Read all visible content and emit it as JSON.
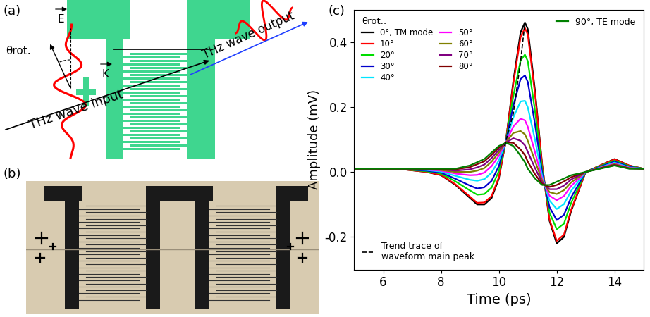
{
  "panels": [
    {
      "label": "(a)",
      "type": "diagram",
      "texts": {
        "angle": "θrot.",
        "field": "E",
        "wavevector": "K",
        "input": "THz wave input",
        "output": "THz wave output"
      }
    },
    {
      "label": "(b)",
      "type": "photo"
    }
  ],
  "chart_data": {
    "type": "line",
    "panel_label": "(c)",
    "x_label": "Time (ps)",
    "y_label": "Amplitude (mV)",
    "xlim": [
      5,
      15
    ],
    "ylim": [
      -0.3,
      0.5
    ],
    "xticks": [
      6,
      8,
      10,
      12,
      14
    ],
    "yticks": [
      -0.2,
      {
        "value": 0.0,
        "label": "0.0"
      },
      0.2,
      0.4
    ],
    "legend": "upper left",
    "legend_title": "θrot.:",
    "x": [
      5,
      5.5,
      6,
      6.5,
      7,
      7.5,
      8,
      8.5,
      9,
      9.25,
      9.5,
      9.75,
      10,
      10.25,
      10.5,
      10.75,
      10.9,
      11,
      11.25,
      11.5,
      11.75,
      12,
      12.25,
      12.5,
      13,
      13.5,
      14,
      14.5,
      15
    ],
    "series": [
      {
        "name": "0°, TM mode",
        "color": "#000000",
        "values": [
          0.01,
          0.01,
          0.01,
          0.01,
          0.005,
          0,
          -0.01,
          -0.04,
          -0.08,
          -0.1,
          -0.1,
          -0.08,
          -0.02,
          0.1,
          0.28,
          0.43,
          0.46,
          0.44,
          0.25,
          0.02,
          -0.15,
          -0.22,
          -0.2,
          -0.12,
          0,
          0.02,
          0.04,
          0.02,
          0.01
        ]
      },
      {
        "name": "10°",
        "color": "#ff0000",
        "values": [
          0.01,
          0.01,
          0.01,
          0.01,
          0.005,
          0.0,
          -0.009,
          -0.038,
          -0.076,
          -0.095,
          -0.094,
          -0.074,
          -0.016,
          0.1,
          0.272,
          0.415,
          0.443,
          0.423,
          0.239,
          0.018,
          -0.146,
          -0.212,
          -0.193,
          -0.116,
          0,
          0.02,
          0.039,
          0.02,
          0.01
        ]
      },
      {
        "name": "20°",
        "color": "#00dd00",
        "values": [
          0.01,
          0.01,
          0.01,
          0.01,
          0.006,
          0.002,
          -0.005,
          -0.029,
          -0.057,
          -0.07,
          -0.068,
          -0.048,
          0.003,
          0.098,
          0.234,
          0.343,
          0.361,
          0.341,
          0.188,
          0.006,
          -0.125,
          -0.176,
          -0.159,
          -0.095,
          0,
          0.018,
          0.035,
          0.018,
          0.01
        ]
      },
      {
        "name": "30°",
        "color": "#0000cc",
        "values": [
          0.01,
          0.01,
          0.01,
          0.01,
          0.007,
          0.004,
          -0.002,
          -0.021,
          -0.042,
          -0.051,
          -0.047,
          -0.027,
          0.018,
          0.096,
          0.204,
          0.286,
          0.297,
          0.277,
          0.147,
          -0.003,
          -0.108,
          -0.148,
          -0.132,
          -0.078,
          0,
          0.016,
          0.032,
          0.016,
          0.01
        ]
      },
      {
        "name": "40°",
        "color": "#00e5ff",
        "values": [
          0.01,
          0.01,
          0.01,
          0.01,
          0.008,
          0.006,
          0.001,
          -0.012,
          -0.024,
          -0.027,
          -0.022,
          -0.002,
          0.036,
          0.094,
          0.168,
          0.217,
          0.219,
          0.199,
          0.099,
          -0.014,
          -0.088,
          -0.114,
          -0.099,
          -0.058,
          0,
          0.014,
          0.029,
          0.014,
          0.01
        ]
      },
      {
        "name": "50°",
        "color": "#ff00ff",
        "values": [
          0.01,
          0.01,
          0.01,
          0.01,
          0.009,
          0.007,
          0.004,
          -0.005,
          -0.01,
          -0.009,
          -0.002,
          0.018,
          0.05,
          0.093,
          0.14,
          0.164,
          0.159,
          0.139,
          0.061,
          -0.022,
          -0.073,
          -0.087,
          -0.074,
          -0.043,
          0,
          0.013,
          0.026,
          0.013,
          0.01
        ]
      },
      {
        "name": "60°",
        "color": "#808000",
        "values": [
          0.01,
          0.01,
          0.01,
          0.01,
          0.009,
          0.008,
          0.006,
          0,
          0,
          0.004,
          0.012,
          0.032,
          0.06,
          0.092,
          0.12,
          0.126,
          0.116,
          0.096,
          0.034,
          -0.028,
          -0.062,
          -0.068,
          -0.056,
          -0.032,
          0,
          0.012,
          0.024,
          0.012,
          0.01
        ]
      },
      {
        "name": "70°",
        "color": "#800080",
        "values": [
          0.01,
          0.01,
          0.01,
          0.01,
          0.009,
          0.009,
          0.008,
          0.004,
          0.008,
          0.014,
          0.023,
          0.043,
          0.068,
          0.091,
          0.104,
          0.096,
          0.082,
          0.062,
          0.012,
          -0.033,
          -0.053,
          -0.053,
          -0.042,
          -0.023,
          0,
          0.011,
          0.022,
          0.011,
          0.01
        ]
      },
      {
        "name": "80°",
        "color": "#800000",
        "values": [
          0.01,
          0.01,
          0.01,
          0.01,
          0.01,
          0.01,
          0.009,
          0.008,
          0.015,
          0.024,
          0.033,
          0.053,
          0.075,
          0.091,
          0.09,
          0.069,
          0.052,
          0.032,
          -0.007,
          -0.037,
          -0.046,
          -0.04,
          -0.029,
          -0.016,
          0,
          0.011,
          0.021,
          0.011,
          0.01
        ]
      },
      {
        "name": "90°, TE mode",
        "color": "#008000",
        "values": [
          0.01,
          0.01,
          0.01,
          0.01,
          0.01,
          0.01,
          0.01,
          0.01,
          0.02,
          0.03,
          0.04,
          0.06,
          0.08,
          0.09,
          0.08,
          0.05,
          0.03,
          0.01,
          -0.02,
          -0.04,
          -0.04,
          -0.03,
          -0.02,
          -0.01,
          0.0,
          0.01,
          0.02,
          0.01,
          0.01
        ]
      },
      {
        "name": "Trend trace of\nwaveform main peak",
        "color": "#000000",
        "line_style": "dashed",
        "x": [
          10.2,
          10.5,
          10.75,
          10.9
        ],
        "values": [
          0.08,
          0.18,
          0.34,
          0.46
        ]
      }
    ]
  }
}
